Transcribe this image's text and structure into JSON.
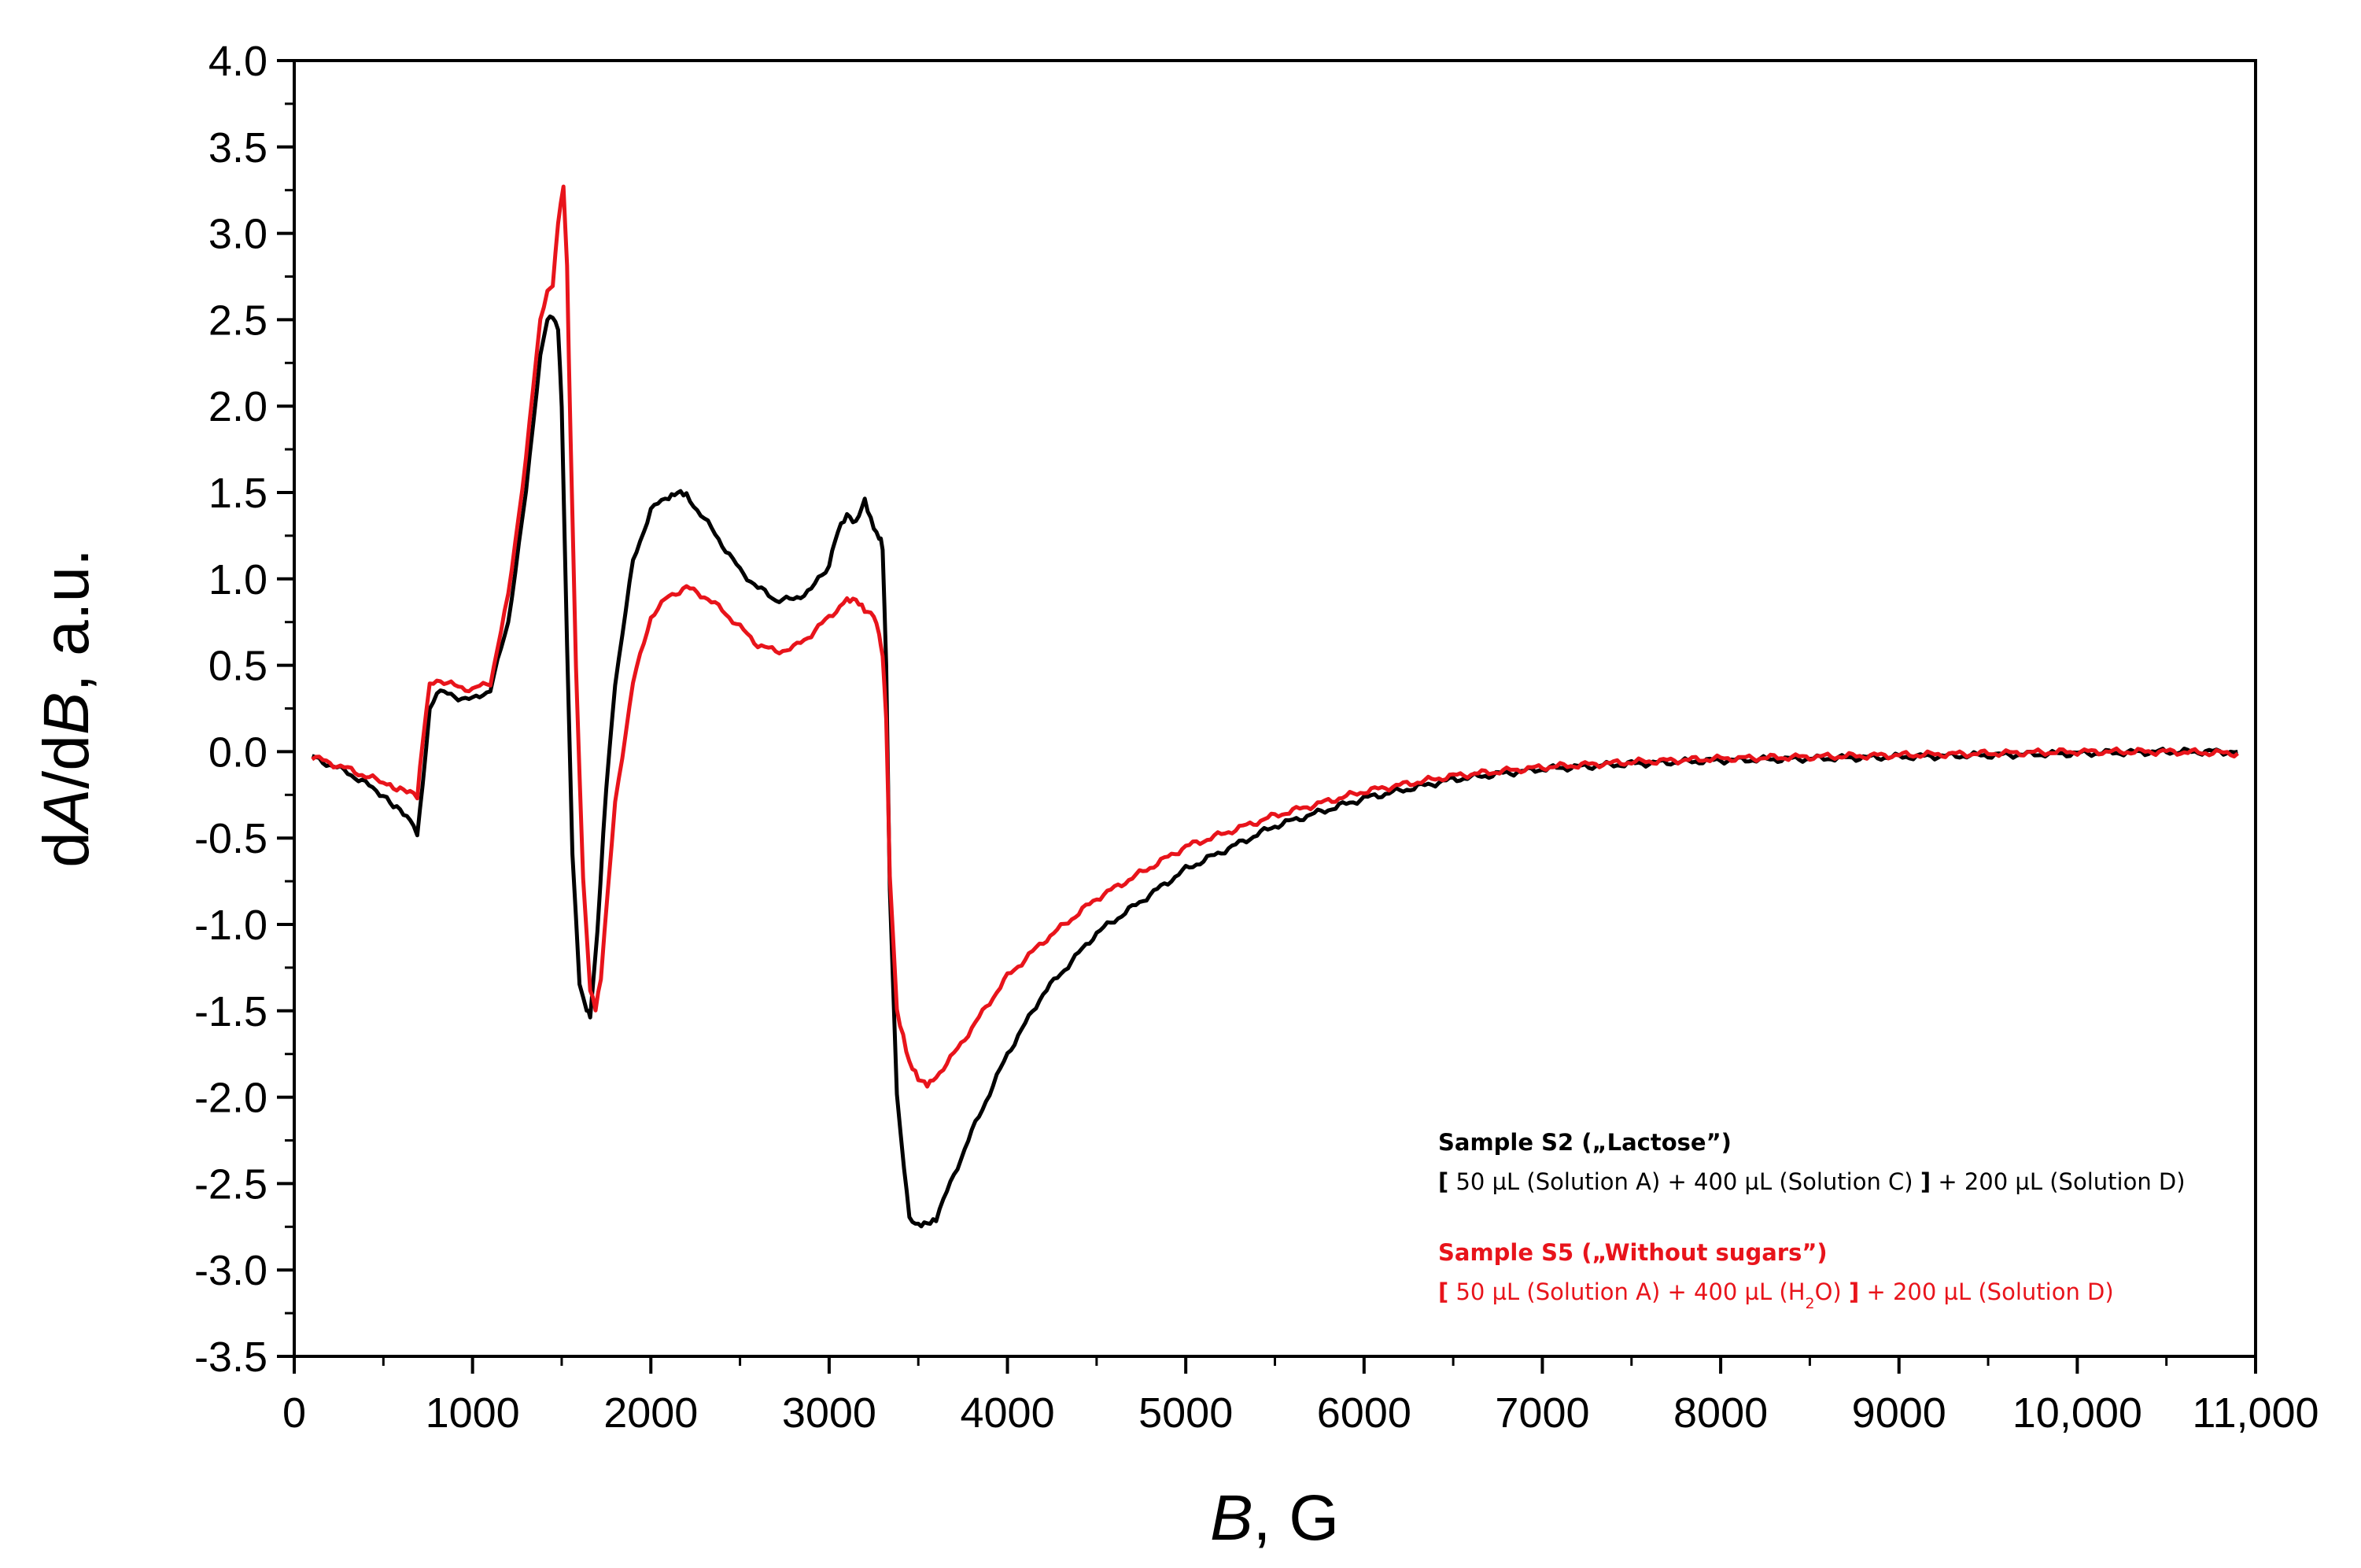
{
  "chart_data": {
    "type": "line",
    "xlabel": {
      "italic": "B",
      "rest": ", G"
    },
    "ylabel": {
      "d1": "d",
      "A": "A",
      "slash": "/d",
      "B": "B",
      "rest": ", a.u."
    },
    "xlim": [
      0,
      11000
    ],
    "ylim": [
      -3.5,
      4.0
    ],
    "x_ticks": [
      0,
      1000,
      2000,
      3000,
      4000,
      5000,
      6000,
      7000,
      8000,
      9000,
      10000,
      11000
    ],
    "x_tick_labels": [
      "0",
      "1000",
      "2000",
      "3000",
      "4000",
      "5000",
      "6000",
      "7000",
      "8000",
      "9000",
      "10,000",
      "11,000"
    ],
    "y_ticks": [
      4.0,
      3.5,
      3.0,
      2.5,
      2.0,
      1.5,
      1.0,
      0.5,
      0.0,
      -0.5,
      -1.0,
      -1.5,
      -2.0,
      -2.5,
      -3.0,
      -3.5
    ],
    "y_tick_labels": [
      "4.0",
      "3.5",
      "3.0",
      "2.5",
      "2.0",
      "1.5",
      "1.0",
      "0.5",
      "0.0",
      "-0.5",
      "-1.0",
      "-1.5",
      "-2.0",
      "-2.5",
      "-3.0",
      "-3.5"
    ],
    "series": [
      {
        "name": "Sample S2 („Lactose”)",
        "color": "#000000",
        "x": [
          100,
          300,
          500,
          650,
          690,
          720,
          760,
          800,
          900,
          1000,
          1100,
          1200,
          1300,
          1380,
          1420,
          1450,
          1480,
          1500,
          1530,
          1560,
          1600,
          1640,
          1660,
          1700,
          1750,
          1800,
          1900,
          2000,
          2100,
          2150,
          2200,
          2300,
          2400,
          2500,
          2600,
          2700,
          2800,
          2900,
          3000,
          3050,
          3100,
          3150,
          3200,
          3250,
          3280,
          3300,
          3320,
          3340,
          3380,
          3420,
          3450,
          3500,
          3550,
          3600,
          3700,
          3800,
          4000,
          4200,
          4500,
          5000,
          5500,
          6000,
          6500,
          7000,
          7500,
          8000,
          8500,
          9000,
          9500,
          10000,
          10500,
          10900
        ],
        "y": [
          -0.03,
          -0.12,
          -0.25,
          -0.4,
          -0.47,
          -0.2,
          0.25,
          0.35,
          0.32,
          0.3,
          0.36,
          0.75,
          1.5,
          2.3,
          2.5,
          2.53,
          2.45,
          2.0,
          0.6,
          -0.6,
          -1.35,
          -1.5,
          -1.52,
          -1.05,
          -0.2,
          0.4,
          1.1,
          1.4,
          1.48,
          1.5,
          1.48,
          1.35,
          1.2,
          1.05,
          0.95,
          0.88,
          0.88,
          0.94,
          1.08,
          1.28,
          1.38,
          1.32,
          1.45,
          1.3,
          1.25,
          1.18,
          0.5,
          -0.8,
          -2.0,
          -2.4,
          -2.7,
          -2.75,
          -2.73,
          -2.7,
          -2.45,
          -2.2,
          -1.75,
          -1.4,
          -1.05,
          -0.68,
          -0.43,
          -0.27,
          -0.16,
          -0.1,
          -0.07,
          -0.05,
          -0.04,
          -0.03,
          -0.02,
          -0.01,
          0.0,
          0.0
        ]
      },
      {
        "name": "Sample S5 („Without sugars”)",
        "color": "#e8141b",
        "x": [
          100,
          300,
          500,
          650,
          690,
          720,
          760,
          800,
          900,
          1000,
          1100,
          1200,
          1300,
          1380,
          1420,
          1450,
          1480,
          1510,
          1530,
          1550,
          1580,
          1620,
          1660,
          1690,
          1720,
          1760,
          1800,
          1900,
          2000,
          2100,
          2200,
          2300,
          2400,
          2500,
          2600,
          2700,
          2800,
          2900,
          3000,
          3100,
          3150,
          3200,
          3250,
          3280,
          3300,
          3320,
          3340,
          3380,
          3450,
          3500,
          3550,
          3600,
          3700,
          3800,
          4000,
          4200,
          4500,
          5000,
          5500,
          6000,
          6500,
          7000,
          7500,
          8000,
          8500,
          9000,
          9500,
          10000,
          10500,
          10900
        ],
        "y": [
          -0.03,
          -0.1,
          -0.18,
          -0.24,
          -0.27,
          0.05,
          0.38,
          0.42,
          0.38,
          0.36,
          0.4,
          0.9,
          1.7,
          2.5,
          2.68,
          2.7,
          3.05,
          3.28,
          2.8,
          1.8,
          0.5,
          -0.75,
          -1.38,
          -1.5,
          -1.3,
          -0.8,
          -0.3,
          0.4,
          0.78,
          0.9,
          0.95,
          0.9,
          0.82,
          0.72,
          0.62,
          0.58,
          0.6,
          0.68,
          0.78,
          0.88,
          0.87,
          0.82,
          0.8,
          0.68,
          0.55,
          0.2,
          -0.7,
          -1.5,
          -1.8,
          -1.9,
          -1.92,
          -1.88,
          -1.75,
          -1.6,
          -1.3,
          -1.1,
          -0.85,
          -0.55,
          -0.37,
          -0.23,
          -0.14,
          -0.09,
          -0.06,
          -0.04,
          -0.03,
          -0.02,
          -0.01,
          0.0,
          0.0,
          -0.01
        ]
      }
    ],
    "legend": {
      "placement": "bottom-right",
      "entries": [
        {
          "title": "Sample S2 („Lactose”)",
          "color": "#000000",
          "open": "[",
          "formula_a": "50 µL (Solution A) + 400 µL (Solution C)",
          "close": "]",
          "formula_b": "+ 200 µL (Solution D)"
        },
        {
          "title": "Sample S5 („Without sugars”)",
          "color": "#e8141b",
          "open": "[",
          "formula_a_pre": "50 µL (Solution A) + 400 µL (H",
          "formula_a_sub": "2",
          "formula_a_post": "O)",
          "close": "]",
          "formula_b": "+ 200 µL (Solution D)"
        }
      ]
    }
  }
}
